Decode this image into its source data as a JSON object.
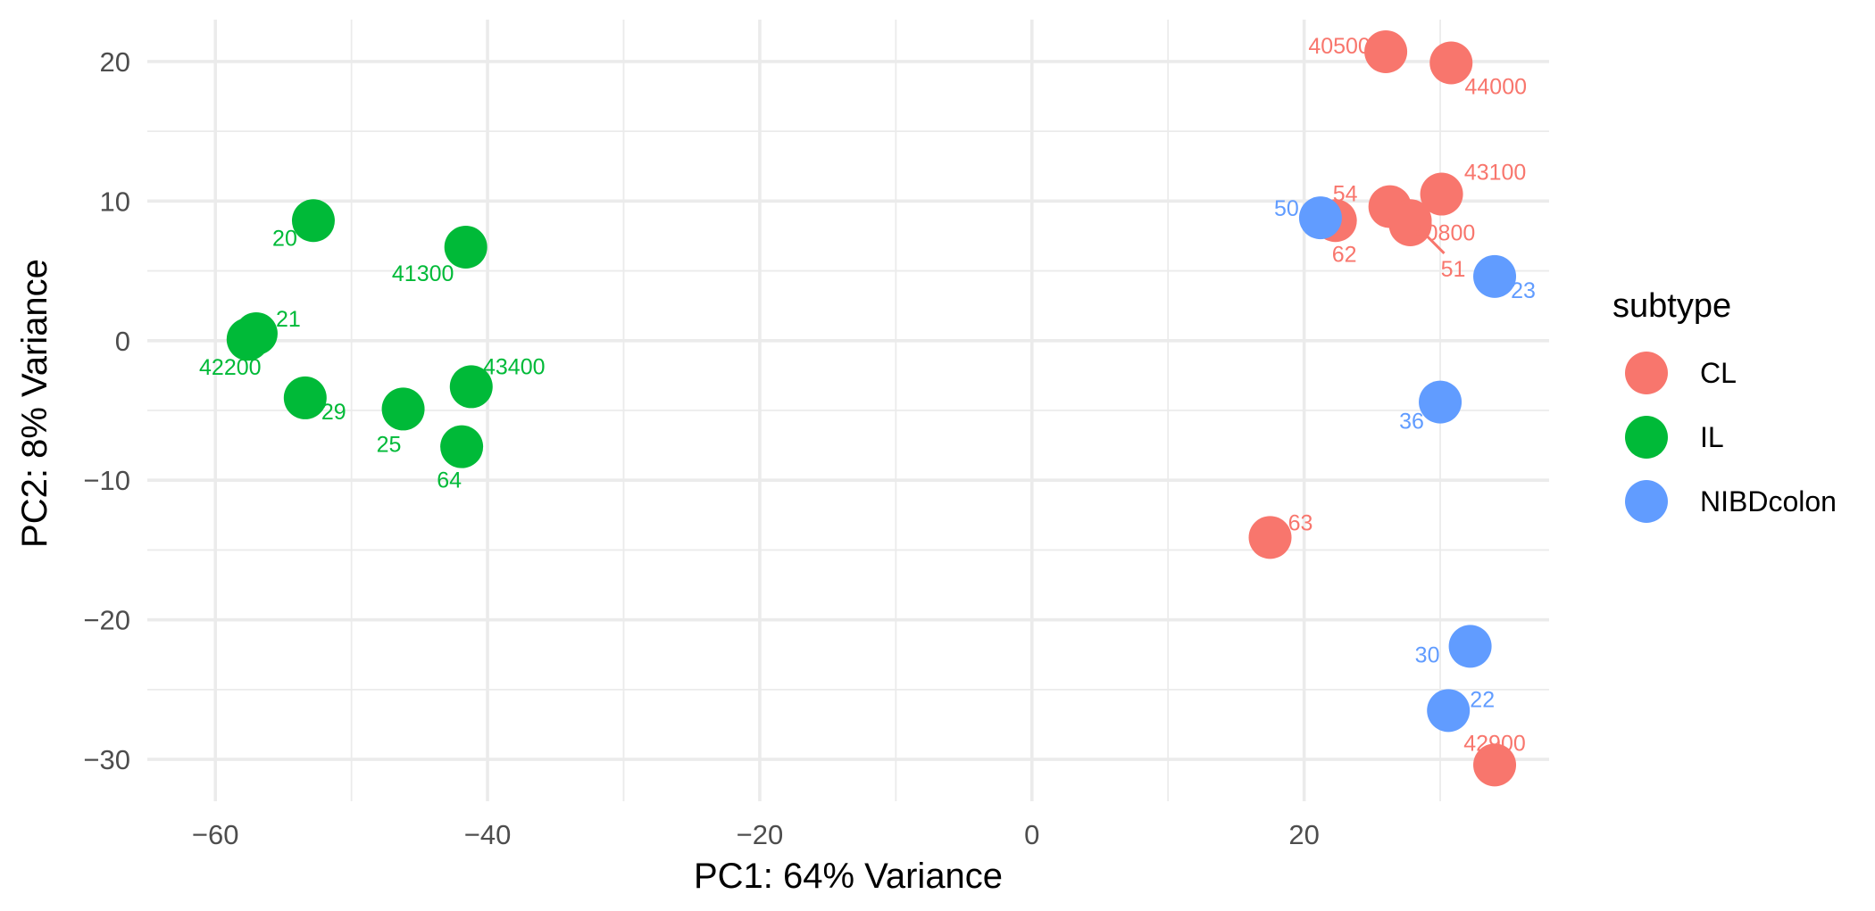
{
  "chart_data": {
    "type": "scatter",
    "xlabel": "PC1: 64% Variance",
    "ylabel": "PC2: 8% Variance",
    "xlim": [
      -65,
      38
    ],
    "ylim": [
      -33,
      23
    ],
    "x_ticks": [
      -60,
      -40,
      -20,
      0,
      20
    ],
    "y_ticks": [
      20,
      10,
      0,
      -10,
      -20,
      -30
    ],
    "grid": true,
    "legend": {
      "title": "subtype",
      "placement": "right"
    },
    "series": [
      {
        "name": "CL",
        "color": "#F8766D",
        "points": [
          {
            "label": "40500",
            "x": 26.0,
            "y": 20.7
          },
          {
            "label": "44000",
            "x": 30.8,
            "y": 19.9
          },
          {
            "label": "43100",
            "x": 30.1,
            "y": 10.5
          },
          {
            "label": "54",
            "x": 26.3,
            "y": 9.6
          },
          {
            "label": "40800",
            "x": 27.8,
            "y": 8.6
          },
          {
            "label": "62",
            "x": 22.3,
            "y": 8.6
          },
          {
            "label": "51",
            "x": 27.8,
            "y": 8.3
          },
          {
            "label": "63",
            "x": 17.5,
            "y": -14.1
          },
          {
            "label": "42900",
            "x": 34.0,
            "y": -30.4
          }
        ]
      },
      {
        "name": "IL",
        "color": "#00BA38",
        "points": [
          {
            "label": "20",
            "x": -52.8,
            "y": 8.6
          },
          {
            "label": "41300",
            "x": -41.6,
            "y": 6.7
          },
          {
            "label": "21",
            "x": -57.0,
            "y": 0.5
          },
          {
            "label": "42200",
            "x": -57.6,
            "y": 0.1
          },
          {
            "label": "43400",
            "x": -41.2,
            "y": -3.3
          },
          {
            "label": "29",
            "x": -53.4,
            "y": -4.1
          },
          {
            "label": "25",
            "x": -46.2,
            "y": -4.9
          },
          {
            "label": "64",
            "x": -41.9,
            "y": -7.6
          }
        ]
      },
      {
        "name": "NIBDcolon",
        "color": "#619CFF",
        "points": [
          {
            "label": "50",
            "x": 21.2,
            "y": 8.8
          },
          {
            "label": "23",
            "x": 34.0,
            "y": 4.6
          },
          {
            "label": "36",
            "x": 30.0,
            "y": -4.4
          },
          {
            "label": "30",
            "x": 32.2,
            "y": -21.9
          },
          {
            "label": "22",
            "x": 30.6,
            "y": -26.5
          }
        ]
      }
    ]
  }
}
